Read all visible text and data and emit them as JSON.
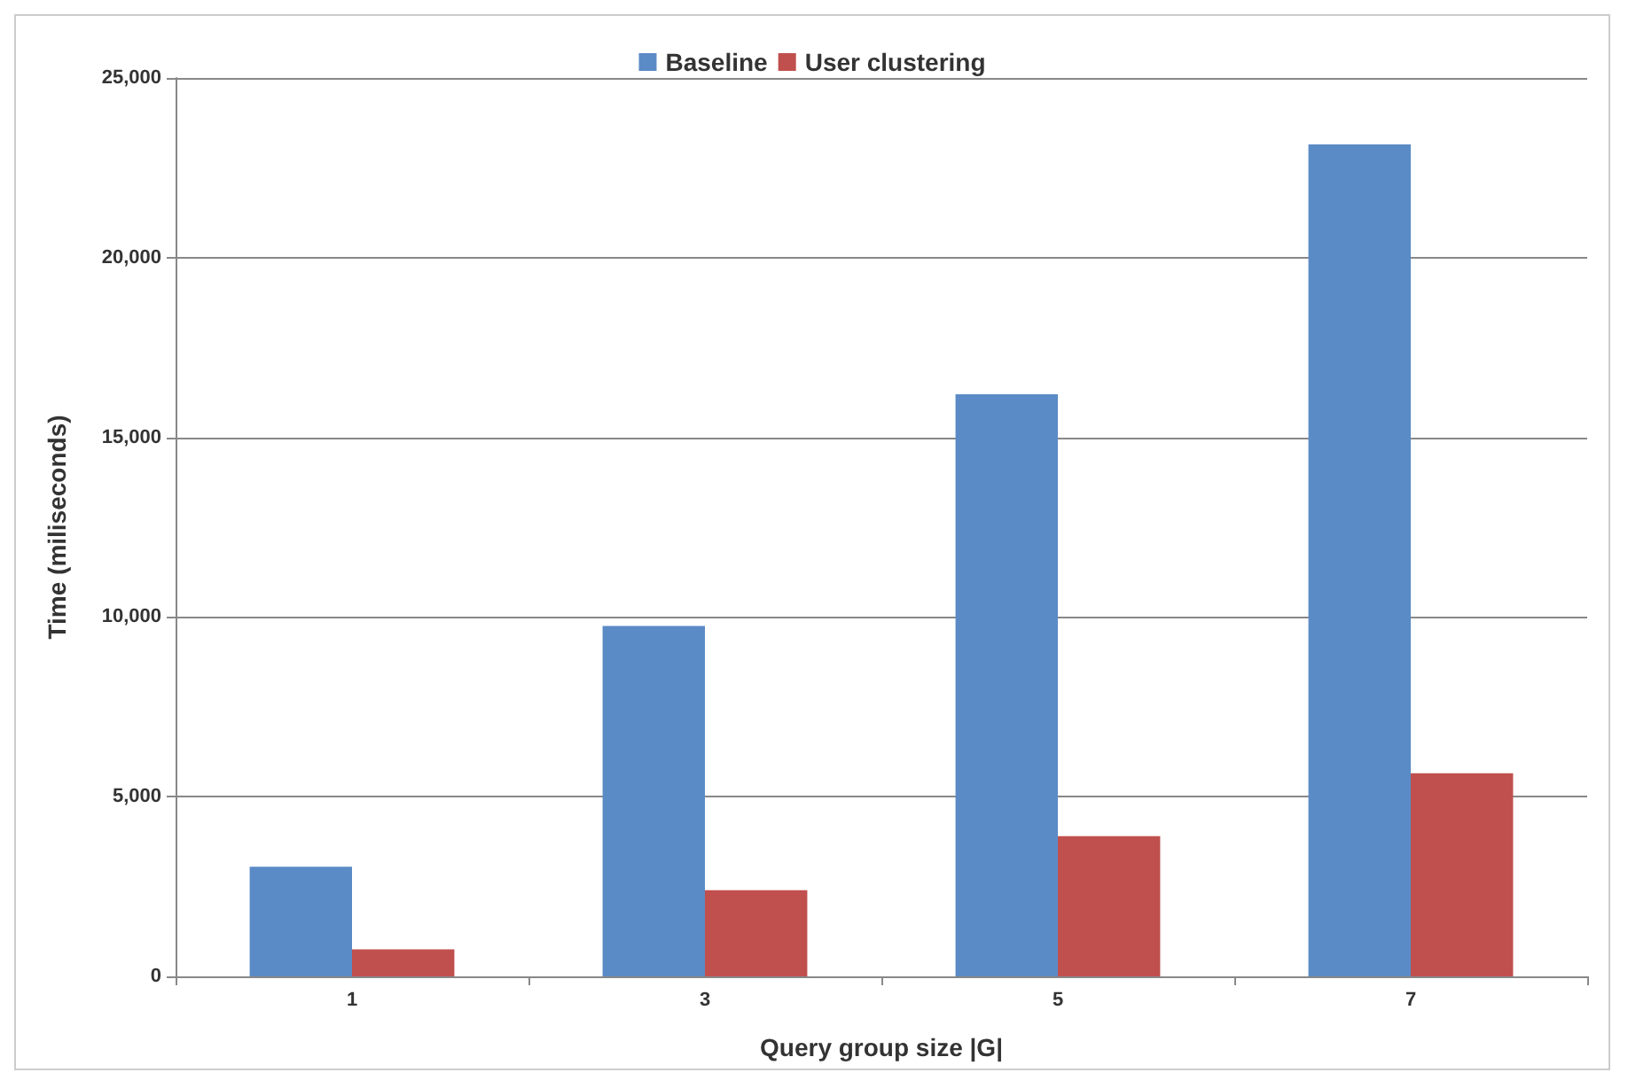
{
  "chart_data": {
    "type": "bar",
    "xlabel": "Query group size |G|",
    "ylabel": "Time (miliseconds)",
    "categories": [
      "1",
      "3",
      "5",
      "7"
    ],
    "series": [
      {
        "name": "Baseline",
        "color": "#5b8bc6",
        "values": [
          3050,
          9750,
          16200,
          23150
        ]
      },
      {
        "name": "User clustering",
        "color": "#c0504d",
        "values": [
          750,
          2400,
          3900,
          5650
        ]
      }
    ],
    "ylim": [
      0,
      25000
    ],
    "yticks": [
      {
        "value": 0,
        "label": "0"
      },
      {
        "value": 5000,
        "label": "5,000"
      },
      {
        "value": 10000,
        "label": "10,000"
      },
      {
        "value": 15000,
        "label": "15,000"
      },
      {
        "value": 20000,
        "label": "20,000"
      },
      {
        "value": 25000,
        "label": "25,000"
      }
    ],
    "grid": "y",
    "legend": "top"
  }
}
